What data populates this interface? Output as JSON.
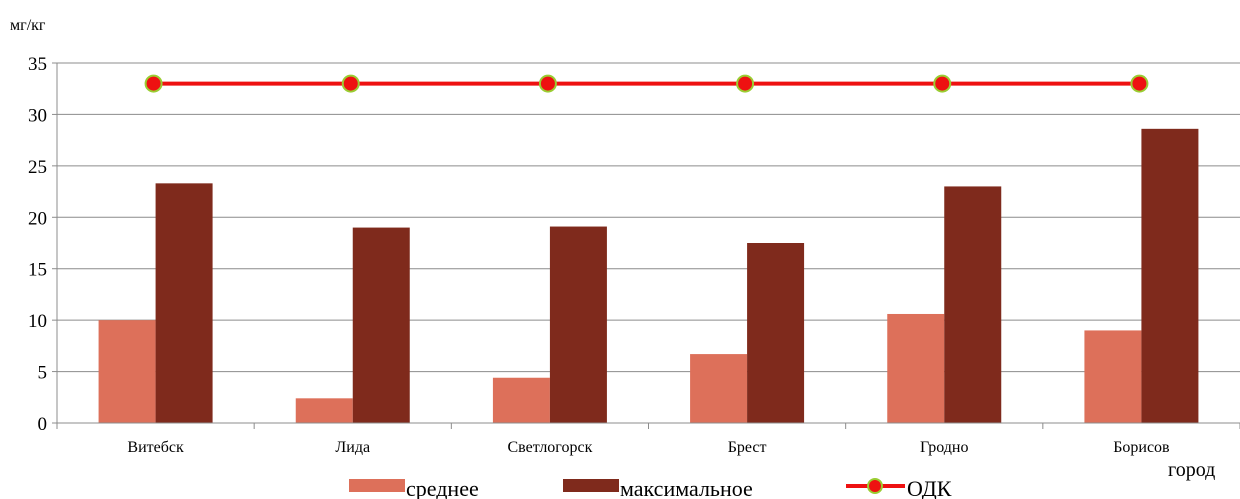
{
  "chart_data": {
    "type": "bar",
    "ylabel": "мг/кг",
    "xlabel": "город",
    "ylim": [
      0,
      35
    ],
    "yticks": [
      0,
      5,
      10,
      15,
      20,
      25,
      30,
      35
    ],
    "grid": true,
    "legend": "bottom",
    "categories": [
      "Витебск",
      "Лида",
      "Светлогорск",
      "Брест",
      "Гродно",
      "Борисов"
    ],
    "series": [
      {
        "name": "среднее",
        "type": "bar",
        "color": "#dd705a",
        "values": [
          10.0,
          2.4,
          4.4,
          6.7,
          10.6,
          9.0
        ]
      },
      {
        "name": "максимальное",
        "type": "bar",
        "color": "#7f2a1c",
        "values": [
          23.3,
          19.0,
          19.1,
          17.5,
          23.0,
          28.6
        ]
      },
      {
        "name": "ОДК",
        "type": "line",
        "color": "#ee1111",
        "marker_color": "#ee1111",
        "marker_edge": "#9acd32",
        "values": [
          33,
          33,
          33,
          33,
          33,
          33
        ]
      }
    ]
  }
}
